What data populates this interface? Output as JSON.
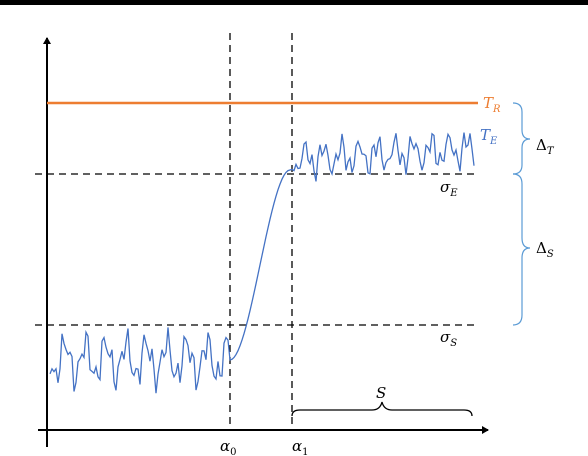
{
  "labels": {
    "t_r": {
      "base": "T",
      "sub": "R"
    },
    "t_e": {
      "base": "T",
      "sub": "E"
    },
    "sigma_e": {
      "base": "σ",
      "sub": "E"
    },
    "sigma_s": {
      "base": "σ",
      "sub": "S"
    },
    "delta_t": {
      "base": "Δ",
      "sub": "T"
    },
    "delta_s": {
      "base": "Δ",
      "sub": "S"
    },
    "alpha_0": {
      "base": "α",
      "sub": "0"
    },
    "alpha_1": {
      "base": "α",
      "sub": "1"
    },
    "s": "S"
  },
  "colors": {
    "t_r_line": "#ED7D31",
    "t_e_curve": "#4472C4",
    "axis": "#000000",
    "brace": "#5B9BD5"
  }
}
